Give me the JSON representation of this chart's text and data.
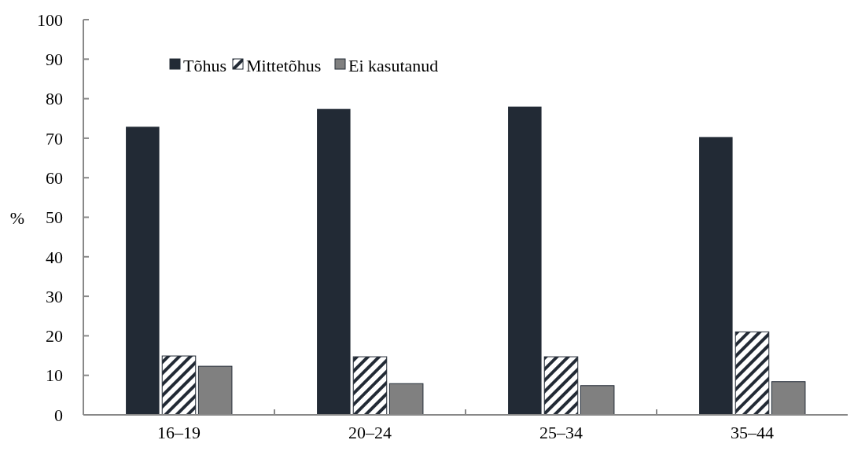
{
  "chart_data": {
    "type": "bar",
    "ylabel": "%",
    "categories": [
      "16–19",
      "20–24",
      "25–34",
      "35–44"
    ],
    "series": [
      {
        "name": "Tõhus",
        "color": "#222a35",
        "values": [
          72.9,
          77.4,
          78,
          70.3
        ]
      },
      {
        "name": "Mittetõhus",
        "color": "#222a35",
        "values": [
          14.9,
          14.7,
          14.7,
          21
        ]
      },
      {
        "name": "Ei kasutanud",
        "color": "#808080",
        "values": [
          12.3,
          7.9,
          7.4,
          8.4
        ]
      }
    ],
    "ylim": [
      0,
      100
    ],
    "yticks": [
      0,
      10,
      20,
      30,
      40,
      50,
      60,
      70,
      80,
      90,
      100
    ],
    "grid": false,
    "legend": "top left"
  }
}
